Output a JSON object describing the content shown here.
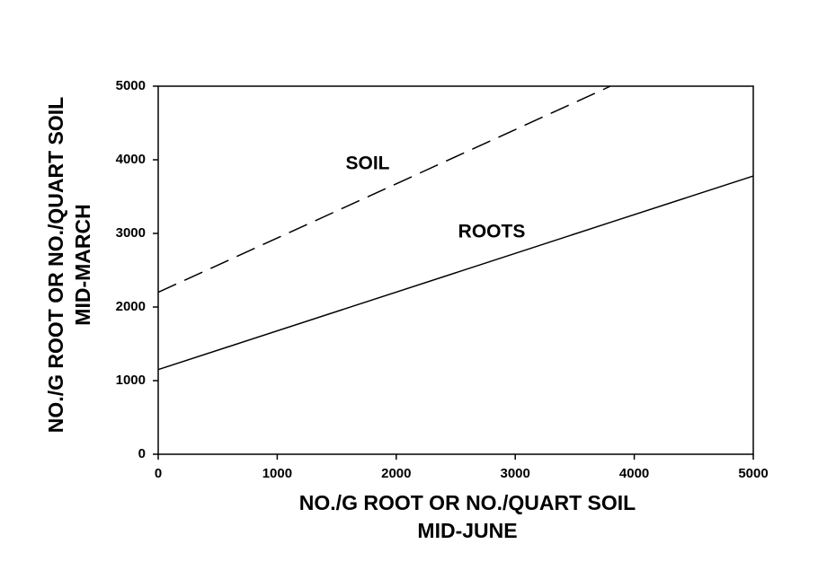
{
  "chart_data": {
    "type": "line",
    "xlabel": [
      "NO./G ROOT OR NO./QUART SOIL",
      "MID-JUNE"
    ],
    "ylabel": [
      "NO./G ROOT OR NO./QUART SOIL",
      "MID-MARCH"
    ],
    "x": [
      0,
      3800,
      5000
    ],
    "series": [
      {
        "name": "SOIL",
        "color": "#000000",
        "linestyle": "dashed",
        "values": [
          2200,
          5000,
          null
        ]
      },
      {
        "name": "ROOTS",
        "color": "#000000",
        "linestyle": "solid",
        "values": [
          1150,
          3150,
          3780
        ]
      }
    ],
    "xlim": [
      0,
      5000
    ],
    "xticks": [
      0,
      1000,
      2000,
      3000,
      4000,
      5000
    ],
    "ylim": [
      0,
      5000
    ],
    "yticks": [
      0,
      1000,
      2000,
      3000,
      4000,
      5000
    ],
    "grid": false
  }
}
